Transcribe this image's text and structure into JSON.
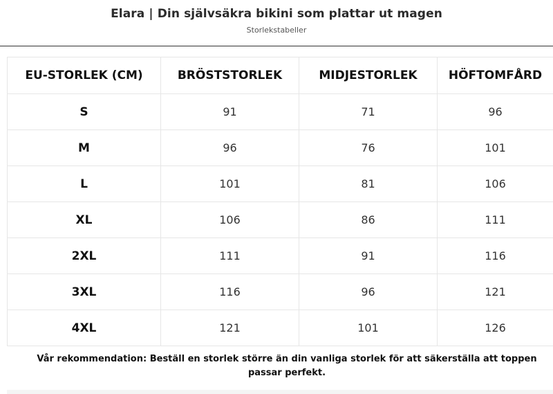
{
  "header": {
    "title": "Elara | Din självsäkra bikini som plattar ut magen",
    "subtitle": "Storlekstabeller"
  },
  "size_table": {
    "columns": [
      "EU-STORLEK (CM)",
      "BRÖSTSTORLEK",
      "MIDJESTORLEK",
      "HÖFTOMFÅRD"
    ],
    "rows": [
      {
        "size": "S",
        "bust": "91",
        "waist": "71",
        "hip": "96"
      },
      {
        "size": "M",
        "bust": "96",
        "waist": "76",
        "hip": "101"
      },
      {
        "size": "L",
        "bust": "101",
        "waist": "81",
        "hip": "106"
      },
      {
        "size": "XL",
        "bust": "106",
        "waist": "86",
        "hip": "111"
      },
      {
        "size": "2XL",
        "bust": "111",
        "waist": "91",
        "hip": "116"
      },
      {
        "size": "3XL",
        "bust": "116",
        "waist": "96",
        "hip": "121"
      },
      {
        "size": "4XL",
        "bust": "121",
        "waist": "101",
        "hip": "126"
      }
    ]
  },
  "recommendation": "Vår rekommendation: Beställ en storlek större än din vanliga storlek för att säkerställa att toppen passar perfekt."
}
